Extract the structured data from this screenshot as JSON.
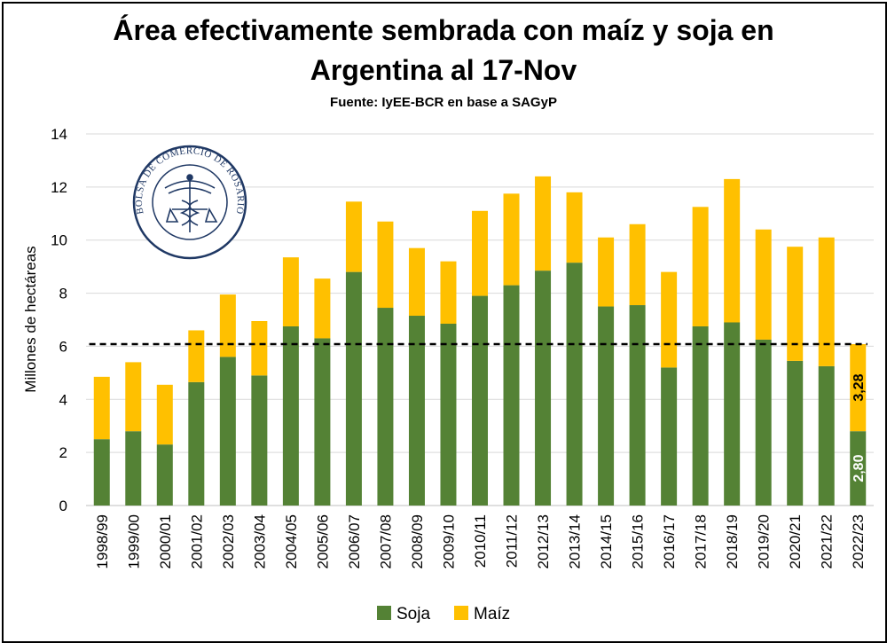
{
  "chart_data": {
    "type": "bar",
    "stacked": true,
    "title_line1": "Área efectivamente sembrada con maíz y soja en",
    "title_line2": "Argentina al 17-Nov",
    "subtitle": "Fuente: IyEE-BCR en base a SAGyP",
    "ylabel": "Millones de hectáreas",
    "xlabel": "",
    "ylim": [
      0,
      14
    ],
    "yticks": [
      "0",
      "2",
      "4",
      "6",
      "8",
      "10",
      "12",
      "14"
    ],
    "grid": true,
    "legend_position": "bottom",
    "reference_line": 6.08,
    "categories": [
      "1998/99",
      "1999/00",
      "2000/01",
      "2001/02",
      "2002/03",
      "2003/04",
      "2004/05",
      "2005/06",
      "2006/07",
      "2007/08",
      "2008/09",
      "2009/10",
      "2010/11",
      "2011/12",
      "2012/13",
      "2013/14",
      "2014/15",
      "2015/16",
      "2016/17",
      "2017/18",
      "2018/19",
      "2019/20",
      "2020/21",
      "2021/22",
      "2022/23"
    ],
    "series": [
      {
        "name": "Soja",
        "color": "#548235",
        "values": [
          2.5,
          2.8,
          2.3,
          4.65,
          5.6,
          4.9,
          6.75,
          6.3,
          8.8,
          7.45,
          7.15,
          6.85,
          7.9,
          8.3,
          8.85,
          9.15,
          7.5,
          7.55,
          5.2,
          6.75,
          6.9,
          6.25,
          5.45,
          5.25,
          2.8
        ]
      },
      {
        "name": "Maíz",
        "color": "#FFC000",
        "values": [
          2.35,
          2.6,
          2.25,
          1.95,
          2.35,
          2.05,
          2.6,
          2.25,
          2.65,
          3.25,
          2.55,
          2.35,
          3.2,
          3.45,
          3.55,
          2.65,
          2.6,
          3.05,
          3.6,
          4.5,
          5.4,
          4.15,
          4.3,
          4.85,
          3.28
        ]
      }
    ],
    "data_labels": {
      "soja_last": "2,80",
      "maiz_last": "3,28"
    }
  },
  "logo": {
    "text": "BOLSA DE COMERCIO DE ROSARIO",
    "ring_color": "#1f3864"
  }
}
